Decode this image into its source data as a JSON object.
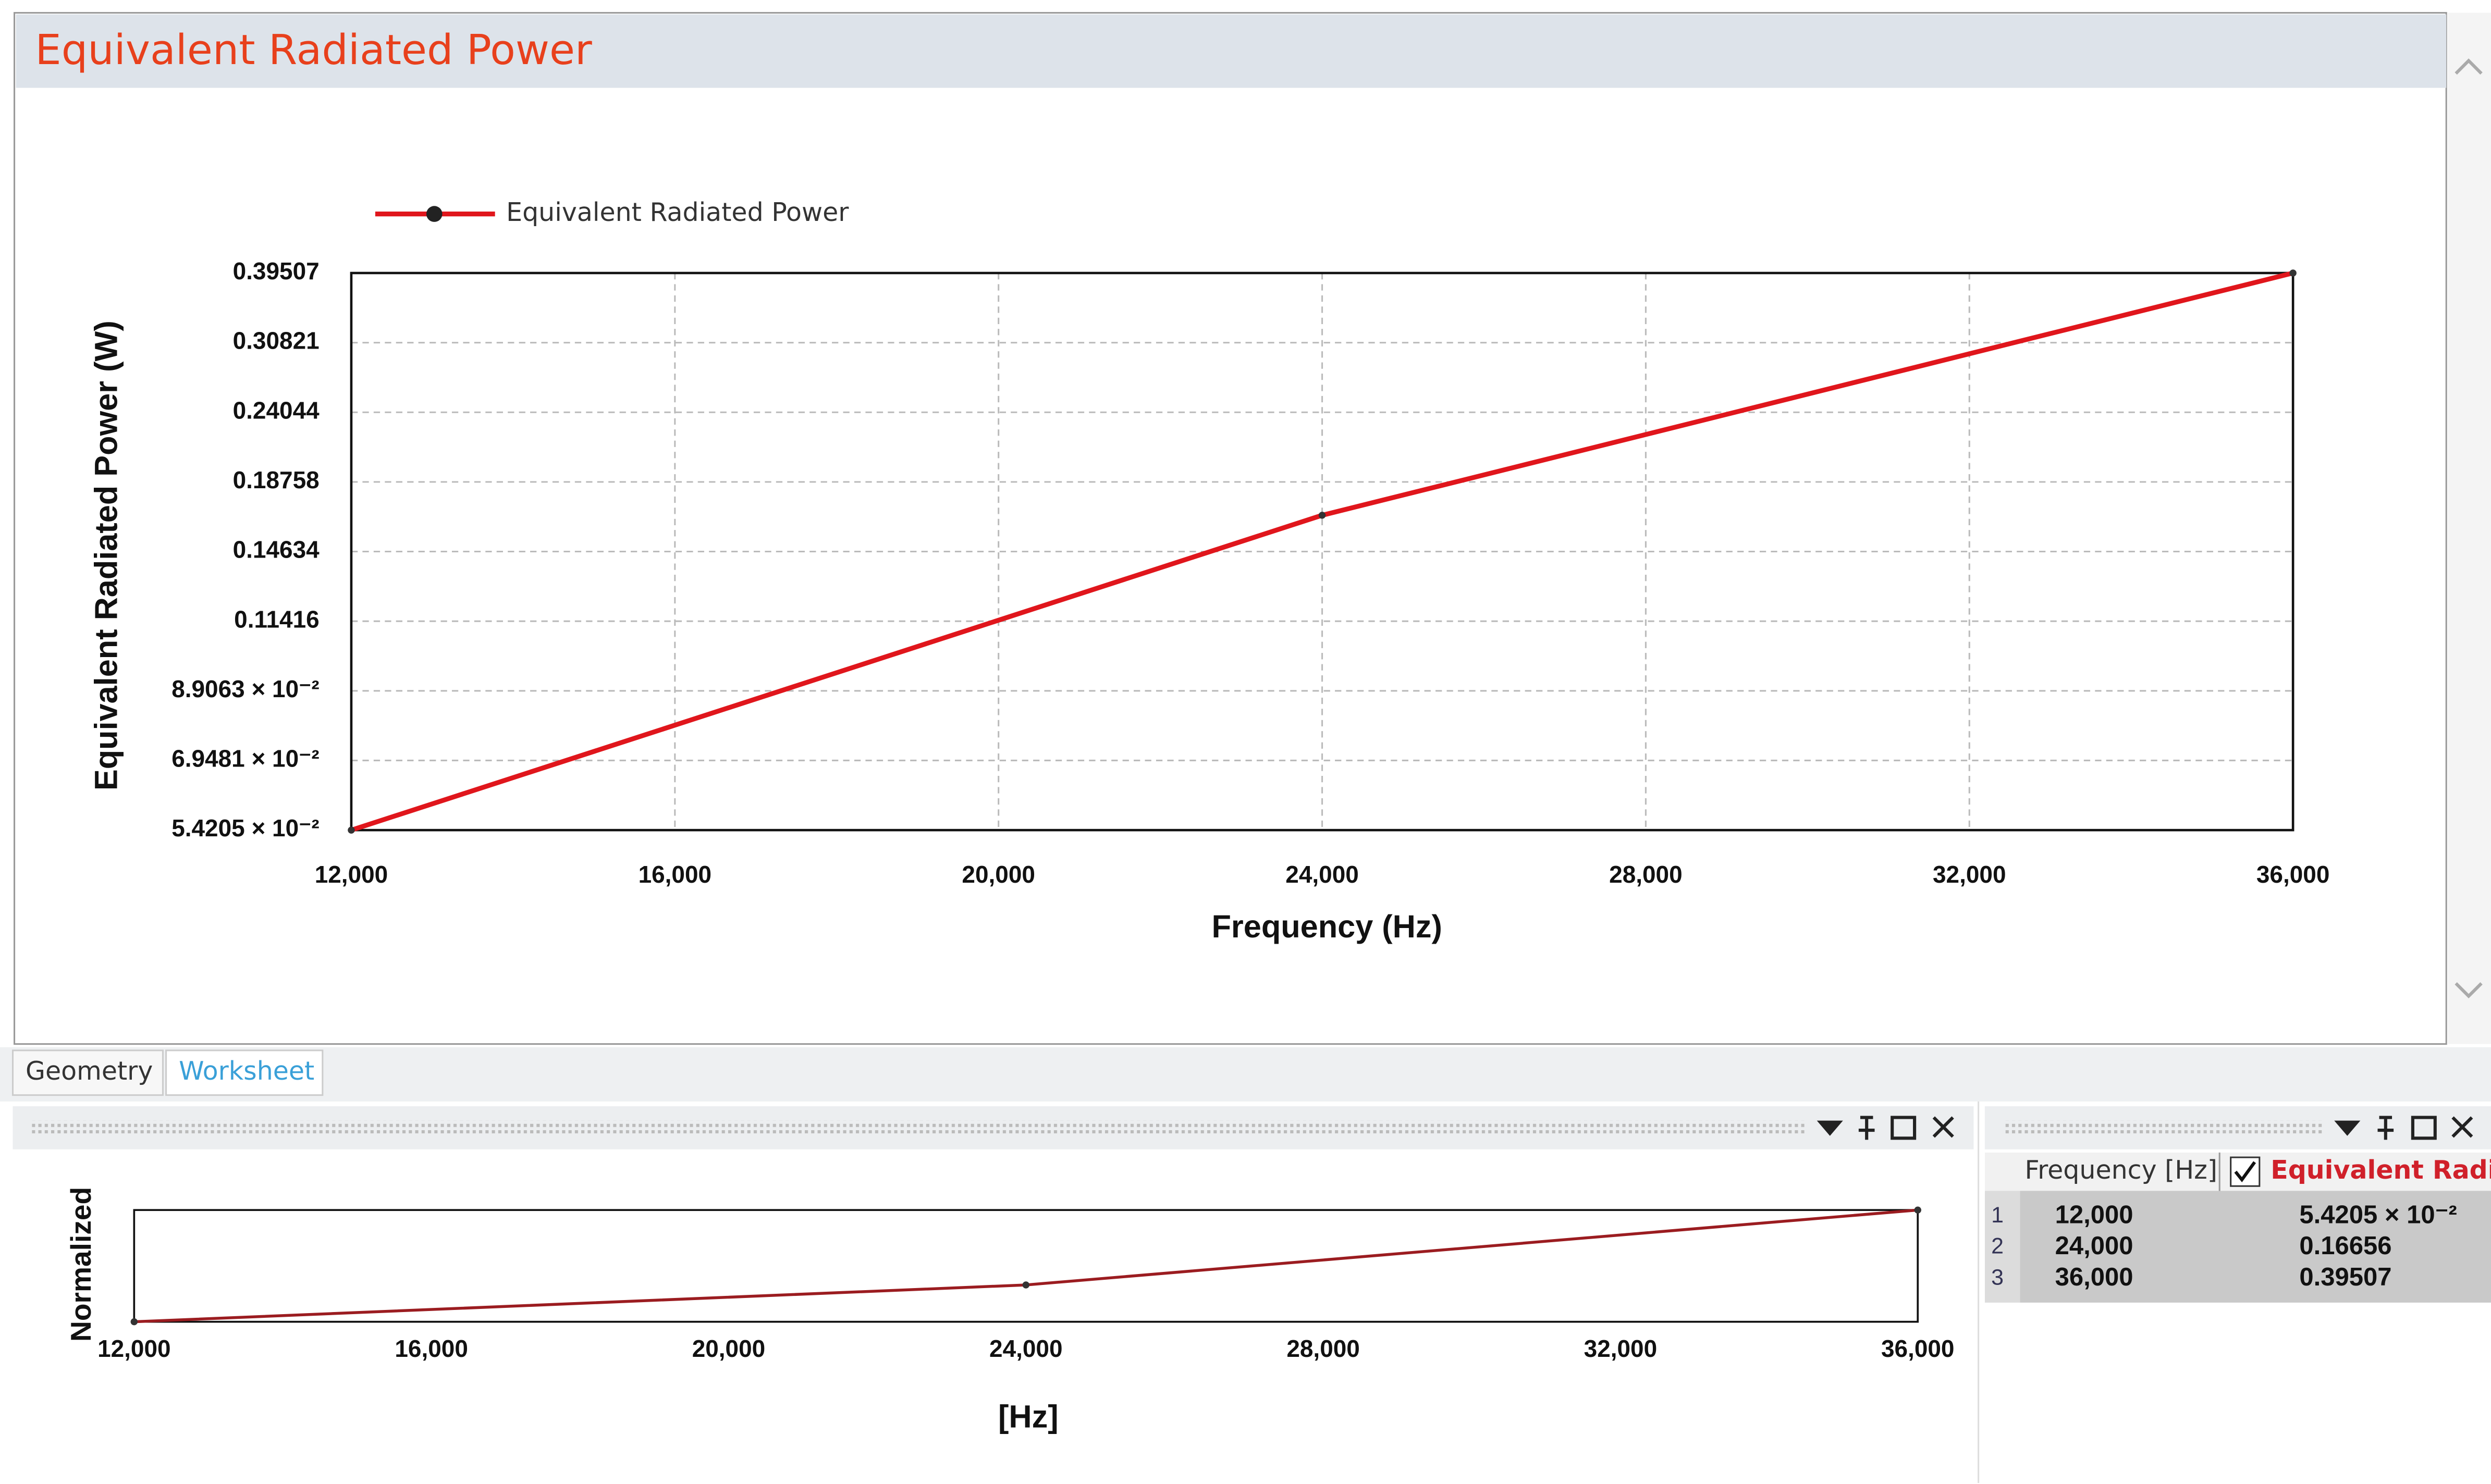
{
  "panel_title": "Equivalent Radiated Power",
  "tabs": [
    "Geometry",
    "Worksheet"
  ],
  "chart_data": [
    {
      "type": "line",
      "x": [
        12000,
        24000,
        36000
      ],
      "series": [
        {
          "name": "Equivalent Radiated Power",
          "color": "#e0161c",
          "values": [
            0.054205,
            0.16656,
            0.39507
          ]
        }
      ],
      "xlabel": "Frequency (Hz)",
      "ylabel": "Equivalent Radiated Power (W)",
      "xlim": [
        12000,
        36000
      ],
      "xticks": [
        {
          "value": 12000,
          "label": "12,000"
        },
        {
          "value": 16000,
          "label": "16,000"
        },
        {
          "value": 20000,
          "label": "20,000"
        },
        {
          "value": 24000,
          "label": "24,000"
        },
        {
          "value": 28000,
          "label": "28,000"
        },
        {
          "value": 32000,
          "label": "32,000"
        },
        {
          "value": 36000,
          "label": "36,000"
        }
      ],
      "ylim": [
        0.054205,
        0.39507
      ],
      "ylog": true,
      "yticks": [
        {
          "value": 0.054205,
          "label": "5.4205 × 10⁻²"
        },
        {
          "value": 0.069481,
          "label": "6.9481 × 10⁻²"
        },
        {
          "value": 0.089063,
          "label": "8.9063 × 10⁻²"
        },
        0.11416,
        0.14634,
        0.18758,
        0.24044,
        0.30821,
        0.39507
      ],
      "grid": true,
      "legend": "top-left"
    },
    {
      "type": "line",
      "x": [
        12000,
        24000,
        36000
      ],
      "series": [
        {
          "color": "#9b1c20",
          "values": [
            0.054205,
            0.16656,
            0.39507
          ]
        }
      ],
      "xlabel": "[Hz]",
      "ylabel": "Normalized",
      "xlim": [
        12000,
        36000
      ],
      "xticks": [
        {
          "value": 12000,
          "label": "12,000"
        },
        {
          "value": 16000,
          "label": "16,000"
        },
        {
          "value": 20000,
          "label": "20,000"
        },
        {
          "value": 24000,
          "label": "24,000"
        },
        {
          "value": 28000,
          "label": "28,000"
        },
        {
          "value": 32000,
          "label": "32,000"
        },
        {
          "value": 36000,
          "label": "36,000"
        }
      ],
      "ylim": [
        0.054205,
        0.39507
      ]
    }
  ],
  "table": {
    "header": [
      "Frequency [Hz]",
      "Equivalent Radiat"
    ],
    "rows": [
      [
        "1",
        "12,000",
        "5.4205 × 10⁻²"
      ],
      [
        "2",
        "24,000",
        "0.16656"
      ],
      [
        "3",
        "36,000",
        "0.39507"
      ]
    ]
  }
}
